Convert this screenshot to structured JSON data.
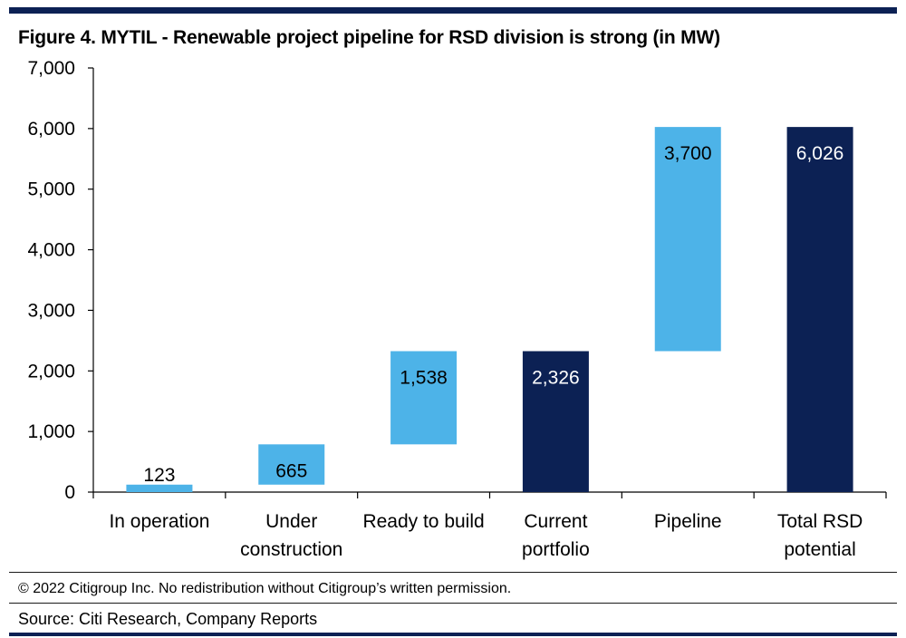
{
  "header": {
    "title": "Figure 4. MYTIL - Renewable project pipeline for RSD division is strong (in MW)"
  },
  "footer": {
    "copyright": "© 2022 Citigroup Inc. No redistribution without Citigroup’s written permission.",
    "source": "Source: Citi Research, Company Reports"
  },
  "colors": {
    "light_bar": "#4db3e8",
    "dark_bar": "#0c2154",
    "rule": "#0c2154"
  },
  "chart_data": {
    "type": "bar",
    "subtype": "waterfall",
    "title": "Figure 4. MYTIL - Renewable project pipeline for RSD division is strong (in MW)",
    "xlabel": "",
    "ylabel": "",
    "ylim": [
      0,
      7000
    ],
    "yticks": [
      0,
      1000,
      2000,
      3000,
      4000,
      5000,
      6000,
      7000
    ],
    "ytick_labels": [
      "0",
      "1,000",
      "2,000",
      "3,000",
      "4,000",
      "5,000",
      "6,000",
      "7,000"
    ],
    "grid": false,
    "legend": "none",
    "categories": [
      [
        "In operation"
      ],
      [
        "Under",
        "construction"
      ],
      [
        "Ready to build"
      ],
      [
        "Current",
        "portfolio"
      ],
      [
        "Pipeline"
      ],
      [
        "Total RSD",
        "potential"
      ]
    ],
    "bars": [
      {
        "base": 0,
        "value": 123,
        "label": "123",
        "kind": "increment"
      },
      {
        "base": 123,
        "value": 665,
        "label": "665",
        "kind": "increment"
      },
      {
        "base": 788,
        "value": 1538,
        "label": "1,538",
        "kind": "increment"
      },
      {
        "base": 0,
        "value": 2326,
        "label": "2,326",
        "kind": "total"
      },
      {
        "base": 2326,
        "value": 3700,
        "label": "3,700",
        "kind": "increment"
      },
      {
        "base": 0,
        "value": 6026,
        "label": "6,026",
        "kind": "total"
      }
    ]
  }
}
